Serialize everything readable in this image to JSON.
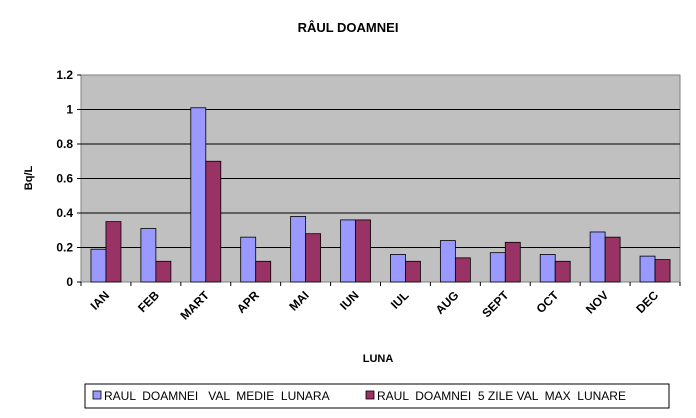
{
  "chart_data": {
    "type": "bar",
    "title": "RÂUL  DOAMNEI",
    "xlabel": "LUNA",
    "ylabel": "Bq/L",
    "ylim": [
      0,
      1.2
    ],
    "yticks": [
      "0",
      "0.2",
      "0.4",
      "0.6",
      "0.8",
      "1",
      "1.2"
    ],
    "grid": true,
    "legend_position": "bottom",
    "categories": [
      "IAN",
      "FEB",
      "MART",
      "APR",
      "MAI",
      "IUN",
      "IUL",
      "AUG",
      "SEPT",
      "OCT",
      "NOV",
      "DEC"
    ],
    "series": [
      {
        "name": "RAUL  DOAMNEI   VAL  MEDIE  LUNARA",
        "color": "#9999FF",
        "values": [
          0.19,
          0.31,
          1.01,
          0.26,
          0.38,
          0.36,
          0.16,
          0.24,
          0.17,
          0.16,
          0.29,
          0.15
        ]
      },
      {
        "name": "RAUL  DOAMNEI  5 ZILE VAL  MAX  LUNARE",
        "color": "#993366",
        "values": [
          0.35,
          0.12,
          0.7,
          0.12,
          0.28,
          0.36,
          0.12,
          0.14,
          0.23,
          0.12,
          0.26,
          0.13
        ]
      }
    ],
    "plot_background": "#C0C0C0"
  }
}
